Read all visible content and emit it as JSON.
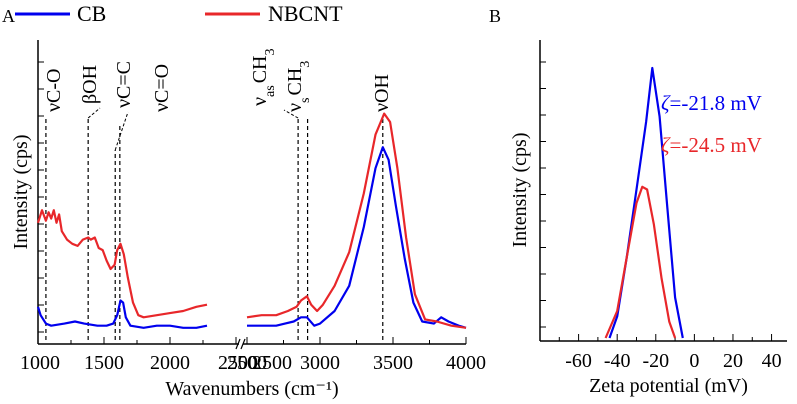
{
  "panels": {
    "a": {
      "letter": "A"
    },
    "b": {
      "letter": "B"
    }
  },
  "legend": {
    "items": [
      {
        "label": "CB",
        "color": "#0000ee"
      },
      {
        "label": "NBCNT",
        "color": "#e8272a"
      }
    ]
  },
  "chart_data": [
    {
      "type": "line",
      "panel": "A",
      "xlabel": "Wavenumbers (cm⁻¹)",
      "ylabel": "Intensity (cps)",
      "x_axis_broken": true,
      "x_segments": [
        {
          "range": [
            1000,
            2500
          ],
          "ticks": [
            "1000",
            "1500",
            "2000",
            "2500"
          ],
          "tick_values": [
            1000,
            1500,
            2000,
            2500
          ]
        },
        {
          "range": [
            2500,
            4000
          ],
          "ticks": [
            "2500",
            "3000",
            "3500",
            "4000"
          ],
          "tick_values": [
            2500,
            3000,
            3500,
            4000
          ]
        }
      ],
      "y_ticks_labeled": false,
      "ylim": [
        0,
        100
      ],
      "peak_annotations": [
        {
          "label": "νC-O",
          "x": 1060
        },
        {
          "label": "βOH",
          "x": 1380
        },
        {
          "label": "νC=C",
          "x": 1585
        },
        {
          "label": "νC=O",
          "x": 1620
        },
        {
          "label": "ν",
          "sub": "as",
          "rest": "CH",
          "sub2": "3",
          "x": 2850
        },
        {
          "label": "ν",
          "sub": "s",
          "rest": "CH",
          "sub2": "3",
          "x": 2915
        },
        {
          "label": "νOH",
          "x": 3430
        }
      ],
      "series": [
        {
          "name": "CB",
          "color": "#0000ee",
          "segments": [
            [
              [
                1000,
                12
              ],
              [
                1020,
                8
              ],
              [
                1060,
                4
              ],
              [
                1100,
                3
              ],
              [
                1200,
                4
              ],
              [
                1280,
                5
              ],
              [
                1350,
                4
              ],
              [
                1450,
                3
              ],
              [
                1520,
                3
              ],
              [
                1570,
                4
              ],
              [
                1600,
                8
              ],
              [
                1625,
                15
              ],
              [
                1645,
                14
              ],
              [
                1665,
                7
              ],
              [
                1700,
                3
              ],
              [
                1800,
                2
              ],
              [
                1900,
                3
              ],
              [
                2000,
                3
              ],
              [
                2100,
                2
              ],
              [
                2200,
                2
              ],
              [
                2280,
                3
              ]
            ],
            [
              [
                2500,
                3
              ],
              [
                2600,
                3
              ],
              [
                2700,
                3
              ],
              [
                2760,
                4
              ],
              [
                2820,
                5
              ],
              [
                2870,
                7
              ],
              [
                2910,
                7
              ],
              [
                2960,
                3
              ],
              [
                3000,
                4
              ],
              [
                3100,
                10
              ],
              [
                3200,
                22
              ],
              [
                3300,
                50
              ],
              [
                3380,
                78
              ],
              [
                3430,
                88
              ],
              [
                3470,
                82
              ],
              [
                3520,
                60
              ],
              [
                3580,
                35
              ],
              [
                3640,
                14
              ],
              [
                3700,
                5
              ],
              [
                3780,
                4
              ],
              [
                3830,
                7
              ],
              [
                3880,
                5
              ],
              [
                3950,
                3
              ],
              [
                4000,
                2
              ]
            ]
          ]
        },
        {
          "name": "NBCNT",
          "color": "#e8272a",
          "segments": [
            [
              [
                1000,
                52
              ],
              [
                1030,
                58
              ],
              [
                1060,
                53
              ],
              [
                1080,
                57
              ],
              [
                1100,
                54
              ],
              [
                1120,
                58
              ],
              [
                1140,
                52
              ],
              [
                1160,
                56
              ],
              [
                1180,
                48
              ],
              [
                1220,
                44
              ],
              [
                1260,
                42
              ],
              [
                1300,
                41
              ],
              [
                1340,
                44
              ],
              [
                1380,
                45
              ],
              [
                1400,
                44
              ],
              [
                1430,
                45
              ],
              [
                1460,
                40
              ],
              [
                1490,
                39
              ],
              [
                1520,
                34
              ],
              [
                1550,
                30
              ],
              [
                1580,
                32
              ],
              [
                1600,
                39
              ],
              [
                1625,
                42
              ],
              [
                1650,
                37
              ],
              [
                1680,
                26
              ],
              [
                1720,
                14
              ],
              [
                1760,
                8
              ],
              [
                1800,
                7
              ],
              [
                1900,
                8
              ],
              [
                2000,
                9
              ],
              [
                2100,
                10
              ],
              [
                2200,
                12
              ],
              [
                2280,
                13
              ]
            ],
            [
              [
                2500,
                7
              ],
              [
                2600,
                8
              ],
              [
                2700,
                8
              ],
              [
                2780,
                10
              ],
              [
                2840,
                12
              ],
              [
                2870,
                15
              ],
              [
                2910,
                17
              ],
              [
                2940,
                13
              ],
              [
                2980,
                10
              ],
              [
                3020,
                13
              ],
              [
                3100,
                22
              ],
              [
                3200,
                38
              ],
              [
                3300,
                66
              ],
              [
                3380,
                94
              ],
              [
                3440,
                104
              ],
              [
                3480,
                100
              ],
              [
                3530,
                78
              ],
              [
                3590,
                45
              ],
              [
                3650,
                18
              ],
              [
                3720,
                6
              ],
              [
                3800,
                5
              ],
              [
                3900,
                3
              ],
              [
                4000,
                2
              ]
            ]
          ]
        }
      ]
    },
    {
      "type": "line",
      "panel": "B",
      "xlabel": "Zeta potential (mV)",
      "ylabel": "Intensity (cps)",
      "xlim": [
        -80,
        48
      ],
      "x_ticks": [
        "-60",
        "-40",
        "-20",
        "0",
        "20",
        "40"
      ],
      "x_tick_values": [
        -60,
        -40,
        -20,
        0,
        20,
        40
      ],
      "y_ticks_labeled": false,
      "ylim": [
        0,
        100
      ],
      "annotations": [
        {
          "symbol": "ζ",
          "text": "=-21.8 mV",
          "color": "#0000ee"
        },
        {
          "symbol": "ζ",
          "text": "=-24.5 mV",
          "color": "#e8272a"
        }
      ],
      "series": [
        {
          "name": "CB",
          "color": "#0000ee",
          "points": [
            [
              -44,
              0
            ],
            [
              -40,
              8
            ],
            [
              -35,
              30
            ],
            [
              -30,
              55
            ],
            [
              -25,
              80
            ],
            [
              -21.8,
              100
            ],
            [
              -18,
              82
            ],
            [
              -14,
              48
            ],
            [
              -10,
              15
            ],
            [
              -6,
              0
            ]
          ]
        },
        {
          "name": "NBCNT",
          "color": "#e8272a",
          "points": [
            [
              -46,
              0
            ],
            [
              -40,
              10
            ],
            [
              -35,
              30
            ],
            [
              -30,
              50
            ],
            [
              -27,
              56
            ],
            [
              -24.5,
              55
            ],
            [
              -21,
              42
            ],
            [
              -17,
              22
            ],
            [
              -13,
              6
            ],
            [
              -10,
              0
            ]
          ]
        }
      ]
    }
  ]
}
